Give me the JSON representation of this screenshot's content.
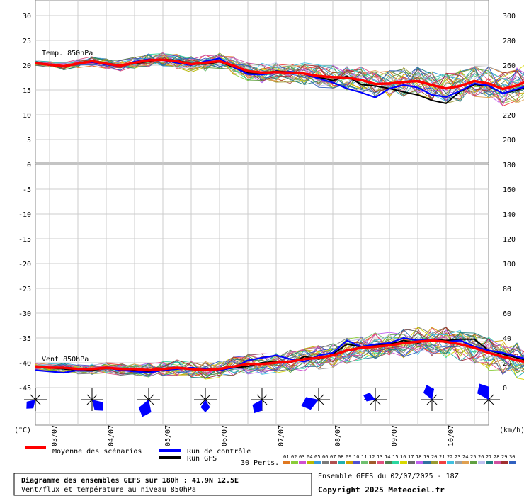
{
  "header": {
    "title": "Diagramme des ensembles GEFS sur 180h : 41.9N 12.5E",
    "subtitle": "Vent/flux et température au niveau 850hPa",
    "run_info": "Ensemble GEFS du 02/07/2025 - 18Z",
    "copyright": "Copyright 2025 Meteociel.fr"
  },
  "legend": {
    "mean_label": "Moyenne des scénarios",
    "control_label": "Run de contrôle",
    "gfs_label": "Run GFS",
    "perts_label": "30 Perts.",
    "pert_numbers": [
      "01",
      "02",
      "03",
      "04",
      "05",
      "06",
      "07",
      "08",
      "09",
      "10",
      "11",
      "12",
      "13",
      "14",
      "15",
      "16",
      "17",
      "18",
      "19",
      "20",
      "21",
      "22",
      "23",
      "24",
      "25",
      "26",
      "27",
      "28",
      "29",
      "30"
    ],
    "pert_colors": [
      "#e07820",
      "#8acc3a",
      "#d04fd0",
      "#b8b800",
      "#3a9ad9",
      "#7a7a7a",
      "#b05050",
      "#20b0b0",
      "#d0a000",
      "#5050d0",
      "#70c070",
      "#a05a2a",
      "#e05080",
      "#508050",
      "#2ad8a0",
      "#d8d800",
      "#6a6a6a",
      "#c060f0",
      "#3070a0",
      "#9a9a30",
      "#f04040",
      "#40c0e0",
      "#a0a0a0",
      "#e0a050",
      "#60a040",
      "#c0c0f0",
      "#208080",
      "#d050a0",
      "#a03030",
      "#3060c0"
    ],
    "mean_color": "#ff0000",
    "control_color": "#0000ff",
    "gfs_color": "#000000"
  },
  "axes": {
    "unit_left": "(°C)",
    "unit_right": "(km/h)",
    "left_ticks": [
      "30",
      "25",
      "20",
      "15",
      "10",
      "5",
      "0",
      "-5",
      "-10",
      "-15",
      "-20",
      "-25",
      "-30",
      "-35",
      "-40",
      "-45"
    ],
    "right_ticks": [
      "300",
      "280",
      "260",
      "240",
      "220",
      "200",
      "180",
      "160",
      "140",
      "120",
      "100",
      "80",
      "60",
      "40",
      "20",
      "0"
    ],
    "date_labels": [
      "03/07",
      "04/07",
      "05/07",
      "06/07",
      "07/07",
      "08/07",
      "09/07",
      "10/07"
    ]
  },
  "chart_data": [
    {
      "type": "line",
      "title": "Temp. 850hPa",
      "ylabel": "(°C)",
      "ylim": [
        0,
        32
      ],
      "grid": true,
      "x_step_hours": 6,
      "x_start": "02/07/2025 18Z",
      "mean": [
        20.4,
        20.1,
        19.8,
        20.3,
        20.8,
        20.3,
        19.9,
        20.5,
        21.0,
        21.1,
        20.8,
        20.2,
        20.5,
        20.8,
        19.9,
        18.8,
        18.5,
        18.6,
        18.5,
        18.3,
        17.8,
        17.6,
        17.5,
        17.0,
        16.2,
        16.3,
        16.6,
        16.8,
        16.0,
        15.3,
        15.8,
        16.8,
        16.3,
        15.2,
        15.9,
        17.2
      ],
      "control": [
        20.4,
        20.2,
        19.8,
        20.4,
        20.6,
        20.1,
        19.8,
        20.7,
        21.2,
        21.0,
        20.5,
        20.0,
        20.8,
        21.4,
        19.6,
        18.2,
        18.1,
        18.6,
        18.7,
        18.2,
        17.3,
        16.5,
        15.3,
        14.5,
        13.5,
        15.3,
        16.0,
        15.5,
        14.0,
        13.6,
        14.8,
        16.3,
        15.9,
        14.3,
        15.2,
        16.0
      ],
      "gfs": [
        20.4,
        20.0,
        19.7,
        20.3,
        20.9,
        20.4,
        20.0,
        20.3,
        20.8,
        21.2,
        21.0,
        20.3,
        20.2,
        20.7,
        19.6,
        18.5,
        18.4,
        18.8,
        18.6,
        18.3,
        17.6,
        16.9,
        17.8,
        16.1,
        15.8,
        15.3,
        14.6,
        14.0,
        12.9,
        12.3,
        14.7,
        16.1,
        15.8,
        14.3,
        15.0,
        15.7
      ]
    },
    {
      "type": "line",
      "title": "Vent 850hPa",
      "ylabel": "(km/h)",
      "ylim": [
        0,
        180
      ],
      "grid": true,
      "x_step_hours": 6,
      "x_start": "02/07/2025 18Z",
      "mean": [
        17,
        16,
        16,
        15,
        15,
        16,
        15,
        15,
        14,
        15,
        16,
        15,
        14,
        15,
        17,
        19,
        19,
        20,
        21,
        23,
        24,
        26,
        30,
        32,
        33,
        34,
        36,
        37,
        38,
        37,
        35,
        32,
        28,
        25,
        22,
        20,
        19,
        20,
        21,
        20,
        19,
        19,
        21,
        22,
        20,
        18,
        16,
        15,
        16
      ],
      "control": [
        14,
        13,
        12,
        14,
        15,
        16,
        14,
        13,
        12,
        14,
        15,
        16,
        15,
        14,
        16,
        22,
        24,
        26,
        23,
        21,
        26,
        28,
        38,
        33,
        35,
        36,
        40,
        38,
        39,
        37,
        38,
        33,
        30,
        28,
        25,
        22,
        21,
        26,
        27,
        26,
        25,
        28,
        26,
        24,
        22,
        19,
        17,
        16,
        17
      ],
      "gfs": [
        17,
        16,
        15,
        14,
        14,
        16,
        15,
        14,
        13,
        14,
        15,
        16,
        15,
        14,
        16,
        17,
        20,
        21,
        20,
        25,
        23,
        27,
        35,
        33,
        34,
        35,
        38,
        36,
        39,
        38,
        39,
        39,
        30,
        27,
        24,
        21,
        20,
        22,
        23,
        21,
        20,
        20,
        22,
        23,
        21,
        18,
        15,
        15,
        16
      ]
    }
  ]
}
